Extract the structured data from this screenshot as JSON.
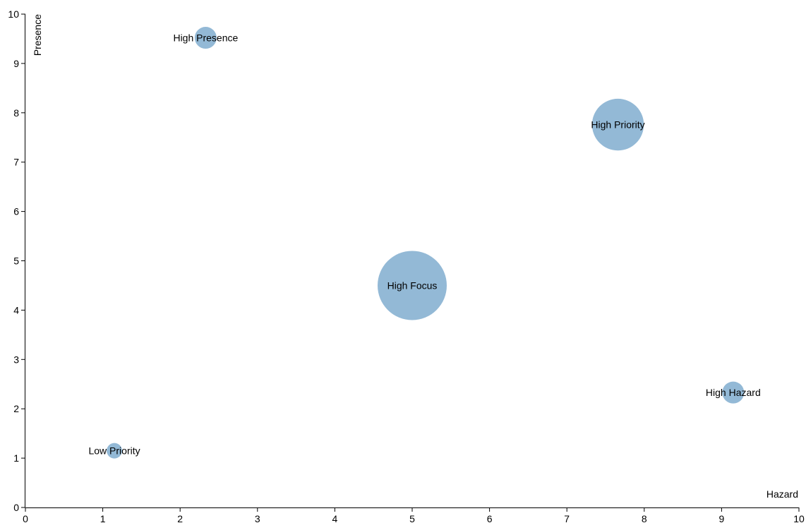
{
  "chart_data": {
    "type": "scatter",
    "title": "",
    "xlabel": "Hazard",
    "ylabel": "Presence",
    "xlim": [
      0,
      10
    ],
    "ylim": [
      0,
      10
    ],
    "xticks": [
      0,
      1,
      2,
      3,
      4,
      5,
      6,
      7,
      8,
      9,
      10
    ],
    "yticks": [
      0,
      1,
      2,
      3,
      4,
      5,
      6,
      7,
      8,
      9,
      10
    ],
    "grid": false,
    "bubble_color": "#93b9d6",
    "points": [
      {
        "label": "High Presence",
        "x": 2.33,
        "y": 9.52,
        "size": 1.0
      },
      {
        "label": "High Priority",
        "x": 7.66,
        "y": 7.76,
        "size": 5.6
      },
      {
        "label": "High Focus",
        "x": 5.0,
        "y": 4.5,
        "size": 10.0
      },
      {
        "label": "High Hazard",
        "x": 9.15,
        "y": 2.33,
        "size": 1.0
      },
      {
        "label": "Low Priority",
        "x": 1.15,
        "y": 1.15,
        "size": 0.5
      }
    ]
  }
}
